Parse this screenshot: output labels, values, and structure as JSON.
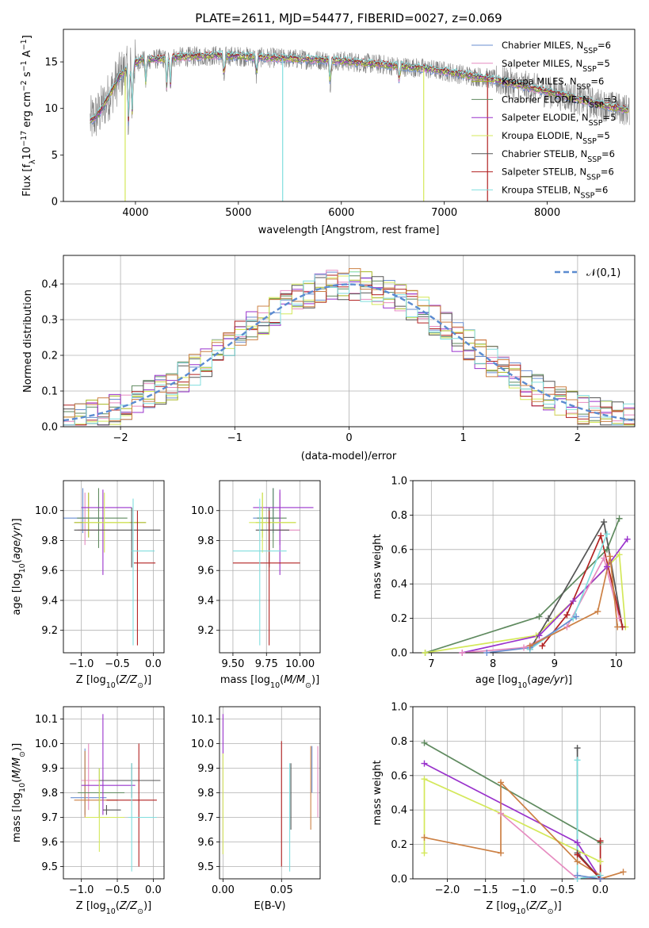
{
  "chart_data": [
    {
      "id": "spectrum",
      "type": "line",
      "title": "PLATE=2611, MJD=54477, FIBERID=0027, z=0.069",
      "xlabel": "wavelength [Angstrom, rest frame]",
      "ylabel": "Flux [f_λ10^-17 erg cm^-2 s^-1 A^-1]",
      "xlim": [
        3300,
        8850
      ],
      "ylim": [
        0,
        18.5
      ],
      "xticks": [
        4000,
        5000,
        6000,
        7000,
        8000
      ],
      "yticks": [
        0,
        5,
        10,
        15
      ],
      "grid": false,
      "legend_position": "right",
      "data_color": "#7f7f7f",
      "data_knots": {
        "x": [
          3550,
          3650,
          3750,
          3850,
          3950,
          4050,
          4200,
          4400,
          4600,
          4800,
          5000,
          5200,
          5400,
          5600,
          5800,
          6000,
          6200,
          6400,
          6600,
          6800,
          7000,
          7200,
          7400,
          7600,
          7800,
          8000,
          8200,
          8400,
          8600,
          8800
        ],
        "y": [
          8.5,
          9.5,
          11.5,
          13.5,
          14.5,
          15.2,
          15.3,
          15.5,
          15.6,
          15.7,
          15.6,
          15.5,
          15.4,
          15.3,
          15.2,
          15.1,
          14.9,
          14.7,
          14.5,
          14.3,
          14.0,
          13.6,
          13.3,
          12.8,
          12.3,
          11.8,
          11.3,
          10.7,
          10.2,
          9.8
        ]
      },
      "series": [
        {
          "name": "Chabrier MILES",
          "nssp": "6",
          "color": "#6a8ed0"
        },
        {
          "name": "Salpeter MILES",
          "nssp": "5",
          "color": "#e68bc0"
        },
        {
          "name": "Kroupa MILES",
          "nssp": "6",
          "color": "#a8b820"
        },
        {
          "name": "Chabrier ELODIE",
          "nssp": "3",
          "color": "#5f8a5f"
        },
        {
          "name": "Salpeter ELODIE",
          "nssp": "5",
          "color": "#9932cc"
        },
        {
          "name": "Kroupa ELODIE",
          "nssp": "5",
          "color": "#d4e85a"
        },
        {
          "name": "Chabrier STELIB",
          "nssp": "6",
          "color": "#555555"
        },
        {
          "name": "Salpeter STELIB",
          "nssp": "6",
          "color": "#b22222"
        },
        {
          "name": "Kroupa STELIB",
          "nssp": "6",
          "color": "#80dede"
        }
      ]
    },
    {
      "id": "residuals",
      "type": "histogram",
      "xlabel": "(data-model)/error",
      "ylabel": "Normed distribution",
      "xlim": [
        -2.5,
        2.5
      ],
      "ylim": [
        0,
        0.48
      ],
      "xticks": [
        -2,
        -1,
        0,
        1,
        2
      ],
      "yticks": [
        0.0,
        0.1,
        0.2,
        0.3,
        0.4
      ],
      "grid": true,
      "bin_width": 0.1,
      "legend": [
        {
          "label": "𝒩(0,1)",
          "color": "#5b8bd0"
        }
      ],
      "legend_position": "top-right"
    },
    {
      "id": "age_vs_Z",
      "type": "errorbar",
      "xlabel": "Z [log10(Z/Z⊙)]",
      "ylabel": "age  [log10(age/yr)]",
      "xlim": [
        -1.25,
        0.15
      ],
      "ylim": [
        9.05,
        10.2
      ],
      "xticks": [
        -1.0,
        -0.5,
        0.0
      ],
      "yticks": [
        9.2,
        9.4,
        9.6,
        9.8,
        10.0
      ],
      "grid": true,
      "points": [
        {
          "x": -0.98,
          "xerr": [
            0.3,
            0.3
          ],
          "y": 9.95,
          "yerr": [
            0.1,
            0.2
          ],
          "color": "#6a8ed0"
        },
        {
          "x": -0.95,
          "xerr": [
            0.1,
            0.35
          ],
          "y": 9.87,
          "yerr": [
            0.1,
            0.25
          ],
          "color": "#e68bc0"
        },
        {
          "x": -0.9,
          "xerr": [
            0.2,
            0.8
          ],
          "y": 9.92,
          "yerr": [
            0.1,
            0.2
          ],
          "color": "#a8b820"
        },
        {
          "x": -0.76,
          "xerr": [
            0.3,
            0.4
          ],
          "y": 9.95,
          "yerr": [
            0.2,
            0.2
          ],
          "color": "#5f8a5f"
        },
        {
          "x": -0.7,
          "xerr": [
            0.3,
            0.4
          ],
          "y": 10.02,
          "yerr": [
            0.45,
            0.12
          ],
          "color": "#9932cc"
        },
        {
          "x": -0.68,
          "xerr": [
            0.3,
            0.35
          ],
          "y": 9.92,
          "yerr": [
            0.2,
            0.2
          ],
          "color": "#d4e85a"
        },
        {
          "x": -0.3,
          "xerr": [
            0.8,
            0.4
          ],
          "y": 9.87,
          "yerr": [
            0.25,
            0.15
          ],
          "color": "#555555"
        },
        {
          "x": -0.22,
          "xerr": [
            0.05,
            0.25
          ],
          "y": 9.65,
          "yerr": [
            0.55,
            0.35
          ],
          "color": "#b22222"
        },
        {
          "x": -0.28,
          "xerr": [
            0.02,
            0.3
          ],
          "y": 9.73,
          "yerr": [
            0.63,
            0.35
          ],
          "color": "#80dede"
        }
      ]
    },
    {
      "id": "age_vs_mass",
      "type": "errorbar",
      "xlabel": "mass [log10(M/M⊙)]",
      "ylabel": "",
      "xlim": [
        9.4,
        10.15
      ],
      "ylim": [
        9.05,
        10.2
      ],
      "xticks": [
        9.5,
        9.75,
        10.0
      ],
      "yticks": [
        9.2,
        9.4,
        9.6,
        9.8,
        10.0
      ],
      "grid": true,
      "points": [
        {
          "x": 9.8,
          "xerr": [
            0.15,
            0.05
          ],
          "y": 9.95,
          "yerr": [
            0.1,
            0.2
          ],
          "color": "#6a8ed0"
        },
        {
          "x": 9.85,
          "xerr": [
            0.1,
            0.15
          ],
          "y": 9.87,
          "yerr": [
            0.1,
            0.25
          ],
          "color": "#e68bc0"
        },
        {
          "x": 9.72,
          "xerr": [
            0.05,
            0.25
          ],
          "y": 9.92,
          "yerr": [
            0.1,
            0.2
          ],
          "color": "#a8b820"
        },
        {
          "x": 9.8,
          "xerr": [
            0.12,
            0.1
          ],
          "y": 9.95,
          "yerr": [
            0.2,
            0.2
          ],
          "color": "#5f8a5f"
        },
        {
          "x": 9.85,
          "xerr": [
            0.2,
            0.25
          ],
          "y": 10.02,
          "yerr": [
            0.45,
            0.12
          ],
          "color": "#9932cc"
        },
        {
          "x": 9.72,
          "xerr": [
            0.1,
            0.25
          ],
          "y": 9.92,
          "yerr": [
            0.2,
            0.2
          ],
          "color": "#d4e85a"
        },
        {
          "x": 9.77,
          "xerr": [
            0.1,
            0.15
          ],
          "y": 9.87,
          "yerr": [
            0.25,
            0.15
          ],
          "color": "#555555"
        },
        {
          "x": 9.77,
          "xerr": [
            0.27,
            0.23
          ],
          "y": 9.65,
          "yerr": [
            0.55,
            0.35
          ],
          "color": "#b22222"
        },
        {
          "x": 9.7,
          "xerr": [
            0.2,
            0.2
          ],
          "y": 9.73,
          "yerr": [
            0.63,
            0.35
          ],
          "color": "#80dede"
        }
      ]
    },
    {
      "id": "weight_vs_age",
      "type": "line",
      "xlabel": "age  [log10(age/yr)]",
      "ylabel": "mass weight",
      "xlim": [
        6.7,
        10.3
      ],
      "ylim": [
        0,
        1.0
      ],
      "xticks": [
        7,
        8,
        9,
        10
      ],
      "yticks": [
        0.0,
        0.2,
        0.4,
        0.6,
        0.8,
        1.0
      ],
      "grid": true,
      "series": [
        {
          "color": "#5f8a5f",
          "x": [
            6.9,
            8.75,
            9.85,
            10.05
          ],
          "y": [
            0.0,
            0.21,
            0.6,
            0.78
          ]
        },
        {
          "color": "#d4e85a",
          "x": [
            6.9,
            8.7,
            9.3,
            10.05,
            10.15
          ],
          "y": [
            0.0,
            0.1,
            0.3,
            0.57,
            0.15
          ]
        },
        {
          "color": "#9932cc",
          "x": [
            7.5,
            8.75,
            9.3,
            9.85,
            10.18
          ],
          "y": [
            0.0,
            0.1,
            0.3,
            0.5,
            0.66
          ]
        },
        {
          "color": "#e68bc0",
          "x": [
            7.5,
            8.5,
            9.2,
            9.8,
            10.05
          ],
          "y": [
            0.0,
            0.03,
            0.15,
            0.55,
            0.2
          ]
        },
        {
          "color": "#555555",
          "x": [
            8.6,
            8.9,
            9.8,
            10.1
          ],
          "y": [
            0.02,
            0.2,
            0.76,
            0.15
          ]
        },
        {
          "color": "#b22222",
          "x": [
            8.8,
            9.2,
            9.75,
            10.1
          ],
          "y": [
            0.04,
            0.22,
            0.68,
            0.15
          ]
        },
        {
          "color": "#80dede",
          "x": [
            8.6,
            9.3,
            9.85
          ],
          "y": [
            0.02,
            0.2,
            0.69
          ]
        },
        {
          "color": "#6a8ed0",
          "x": [
            7.9,
            8.6,
            9.35
          ],
          "y": [
            0.0,
            0.03,
            0.21
          ]
        },
        {
          "color": "#cc8044",
          "x": [
            8.6,
            9.7,
            9.9,
            10.02
          ],
          "y": [
            0.04,
            0.24,
            0.56,
            0.15
          ]
        }
      ]
    },
    {
      "id": "mass_vs_Z",
      "type": "errorbar",
      "xlabel": "Z [log10(Z/Z⊙)]",
      "ylabel": "mass [log10(M/M⊙)]",
      "xlim": [
        -1.25,
        0.15
      ],
      "ylim": [
        9.45,
        10.15
      ],
      "xticks": [
        -1.0,
        -0.5,
        0.0
      ],
      "yticks": [
        9.5,
        9.6,
        9.7,
        9.8,
        9.9,
        10.0,
        10.1
      ],
      "grid": true,
      "points": [
        {
          "x": -0.95,
          "xerr": [
            0.2,
            0.3
          ],
          "y": 9.78,
          "yerr": [
            0.07,
            0.2
          ],
          "color": "#6a8ed0"
        },
        {
          "x": -0.9,
          "xerr": [
            0.1,
            0.3
          ],
          "y": 9.85,
          "yerr": [
            0.12,
            0.15
          ],
          "color": "#e68bc0"
        },
        {
          "x": -0.95,
          "xerr": [
            0.15,
            0.45
          ],
          "y": 9.77,
          "yerr": [
            0.07,
            0.2
          ],
          "color": "#cc8044"
        },
        {
          "x": -0.75,
          "xerr": [
            0.3,
            0.35
          ],
          "y": 9.8,
          "yerr": [
            0.1,
            0.1
          ],
          "color": "#5f8a5f"
        },
        {
          "x": -0.7,
          "xerr": [
            0.3,
            0.45
          ],
          "y": 9.83,
          "yerr": [
            0.12,
            0.29
          ],
          "color": "#9932cc"
        },
        {
          "x": -0.75,
          "xerr": [
            0.2,
            0.35
          ],
          "y": 9.7,
          "yerr": [
            0.14,
            0.2
          ],
          "color": "#d4e85a"
        },
        {
          "x": -0.3,
          "xerr": [
            0.45,
            0.4
          ],
          "y": 9.85,
          "yerr": [
            0.07,
            0.07
          ],
          "color": "#555555"
        },
        {
          "x": -0.2,
          "xerr": [
            0.45,
            0.25
          ],
          "y": 9.77,
          "yerr": [
            0.27,
            0.23
          ],
          "color": "#b22222"
        },
        {
          "x": -0.3,
          "xerr": [
            0.05,
            0.35
          ],
          "y": 9.7,
          "yerr": [
            0.22,
            0.22
          ],
          "color": "#80dede"
        },
        {
          "x": -0.65,
          "xerr": [
            0.05,
            0.2
          ],
          "y": 9.73,
          "yerr": [
            0.02,
            0.02
          ],
          "color": "#555555"
        }
      ]
    },
    {
      "id": "mass_vs_ebv",
      "type": "errorbar",
      "xlabel": "E(B-V)",
      "ylabel": "",
      "xlim": [
        -0.003,
        0.083
      ],
      "ylim": [
        9.45,
        10.15
      ],
      "xticks": [
        0.0,
        0.05
      ],
      "yticks": [
        9.5,
        9.6,
        9.7,
        9.8,
        9.9,
        10.0,
        10.1
      ],
      "grid": true,
      "points": [
        {
          "x": 0.0,
          "y": 9.8,
          "yerr": [
            0.25,
            0.32
          ],
          "color": "#9932cc"
        },
        {
          "x": 0.0,
          "y": 9.75,
          "yerr": [
            0.2,
            0.21
          ],
          "color": "#d4e85a"
        },
        {
          "x": 0.05,
          "y": 9.75,
          "yerr": [
            0.25,
            0.26
          ],
          "color": "#b22222"
        },
        {
          "x": 0.057,
          "y": 9.7,
          "yerr": [
            0.22,
            0.22
          ],
          "color": "#80dede"
        },
        {
          "x": 0.058,
          "y": 9.85,
          "yerr": [
            0.2,
            0.07
          ],
          "color": "#555555"
        },
        {
          "x": 0.075,
          "y": 9.85,
          "yerr": [
            0.2,
            0.14
          ],
          "color": "#cc8044"
        },
        {
          "x": 0.076,
          "y": 9.9,
          "yerr": [
            0.1,
            0.09
          ],
          "color": "#6a8ed0"
        },
        {
          "x": 0.081,
          "y": 9.85,
          "yerr": [
            0.15,
            0.14
          ],
          "color": "#e68bc0"
        }
      ]
    },
    {
      "id": "weight_vs_Z",
      "type": "line",
      "xlabel": "Z [log10(Z/Z⊙)]",
      "ylabel": "mass weight",
      "xlim": [
        -2.45,
        0.45
      ],
      "ylim": [
        0,
        1.0
      ],
      "xticks": [
        -2.0,
        -1.5,
        -1.0,
        -0.5,
        0.0
      ],
      "yticks": [
        0.0,
        0.2,
        0.4,
        0.6,
        0.8,
        1.0
      ],
      "grid": true,
      "series": [
        {
          "color": "#5f8a5f",
          "x": [
            -2.3,
            0.0
          ],
          "y": [
            0.79,
            0.21
          ]
        },
        {
          "color": "#9932cc",
          "x": [
            -2.3,
            -0.3,
            0.0
          ],
          "y": [
            0.67,
            0.21,
            0.0
          ]
        },
        {
          "color": "#d4e85a",
          "x": [
            -2.3,
            -2.3,
            -1.3,
            0.0
          ],
          "y": [
            0.15,
            0.58,
            0.38,
            0.1
          ]
        },
        {
          "color": "#e68bc0",
          "x": [
            -1.3,
            -0.3,
            0.0
          ],
          "y": [
            0.38,
            0.0,
            0.0
          ]
        },
        {
          "color": "#cc8044",
          "x": [
            -2.3,
            -1.3,
            -1.3,
            -0.3,
            0.0,
            0.0,
            0.3
          ],
          "y": [
            0.24,
            0.15,
            0.56,
            0.1,
            0.02,
            0.0,
            0.04
          ]
        },
        {
          "color": "#555555",
          "x": [
            -0.3,
            -0.3,
            0.0
          ],
          "y": [
            0.76,
            0.15,
            0.0
          ]
        },
        {
          "color": "#b22222",
          "x": [
            -0.3,
            0.0,
            0.0
          ],
          "y": [
            0.14,
            0.0,
            0.22
          ]
        },
        {
          "color": "#80dede",
          "x": [
            -0.3,
            -0.3,
            0.0
          ],
          "y": [
            0.69,
            0.0,
            0.02
          ]
        },
        {
          "color": "#6a8ed0",
          "x": [
            -0.3,
            0.0
          ],
          "y": [
            0.02,
            0.0
          ]
        }
      ]
    }
  ]
}
